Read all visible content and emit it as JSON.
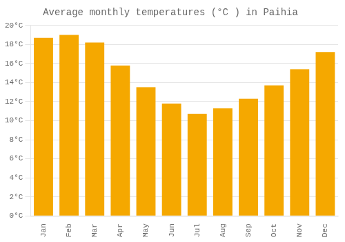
{
  "chart_data": {
    "type": "bar",
    "title": "Average monthly temperatures (°C ) in Paihia",
    "categories": [
      "Jan",
      "Feb",
      "Mar",
      "Apr",
      "May",
      "Jun",
      "Jul",
      "Aug",
      "Sep",
      "Oct",
      "Nov",
      "Dec"
    ],
    "values": [
      18.7,
      19.0,
      18.2,
      15.8,
      13.5,
      11.8,
      10.7,
      11.3,
      12.3,
      13.7,
      15.4,
      17.2
    ],
    "color": "#F5A800",
    "ylim": [
      0,
      20
    ],
    "yticks": [
      {
        "value": 0,
        "label": "0°C"
      },
      {
        "value": 2,
        "label": "2°C"
      },
      {
        "value": 4,
        "label": "4°C"
      },
      {
        "value": 6,
        "label": "6°C"
      },
      {
        "value": 8,
        "label": "8°C"
      },
      {
        "value": 10,
        "label": "10°C"
      },
      {
        "value": 12,
        "label": "12°C"
      },
      {
        "value": 14,
        "label": "14°C"
      },
      {
        "value": 16,
        "label": "16°C"
      },
      {
        "value": 18,
        "label": "18°C"
      },
      {
        "value": 20,
        "label": "20°C"
      }
    ],
    "grid": true
  }
}
